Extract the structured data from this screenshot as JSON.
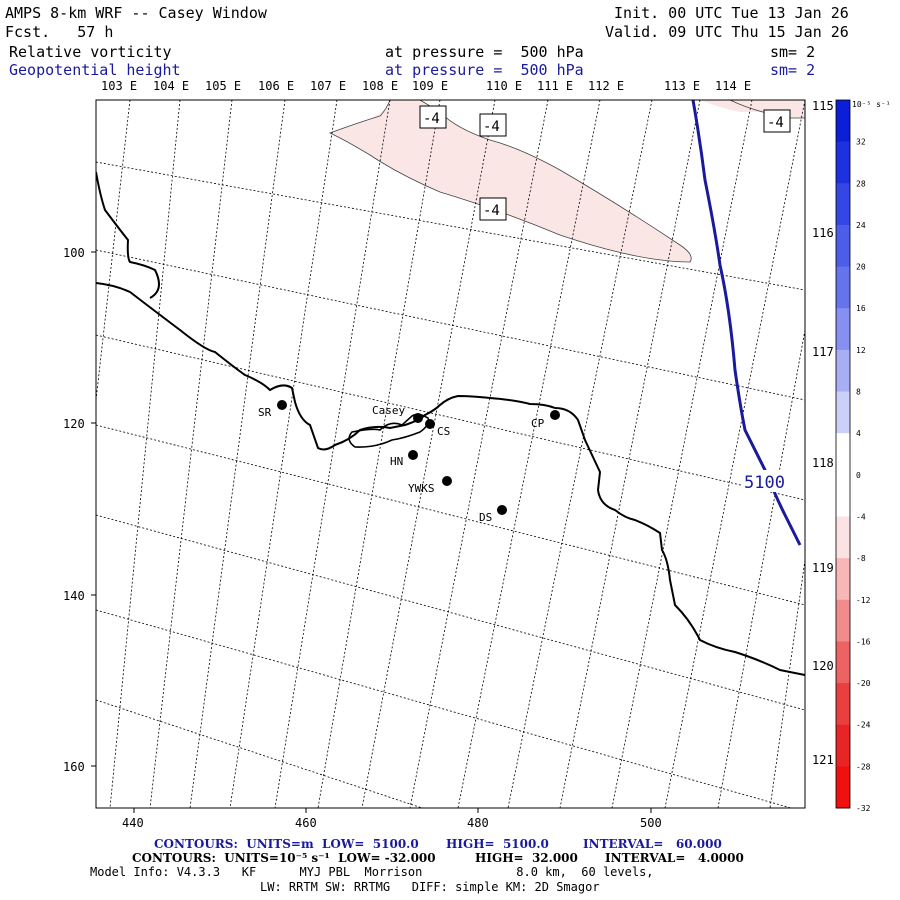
{
  "header": {
    "title": "AMPS 8-km WRF -- Casey Window",
    "forecast": "Fcst.   57 h",
    "init": "Init. 00 UTC Tue 13 Jan 26",
    "valid": "Valid. 09 UTC Thu 15 Jan 26",
    "field1": {
      "name": "Relative vorticity",
      "level": "at pressure =  500 hPa",
      "smooth": "sm= 2"
    },
    "field2": {
      "name": "Geopotential height",
      "level": "at pressure =  500 hPa",
      "smooth": "sm= 2"
    }
  },
  "map": {
    "lon_labels_top": [
      "103 E",
      "104 E",
      "105 E",
      "106 E",
      "107 E",
      "108 E",
      "109 E",
      "110 E",
      "111 E",
      "112 E",
      "113 E",
      "114 E"
    ],
    "lat_labels_right": [
      "115 E",
      "116 E",
      "117 E",
      "118 E",
      "119 E",
      "120 E",
      "121 E"
    ],
    "x_ticks": [
      "440",
      "460",
      "480",
      "500"
    ],
    "y_ticks": [
      "100",
      "120",
      "140",
      "160"
    ],
    "contour_labels": {
      "vort_neg": "-4",
      "height": "5100"
    },
    "stations": [
      {
        "id": "SR",
        "label": "SR"
      },
      {
        "id": "Casey",
        "label": "Casey"
      },
      {
        "id": "CS",
        "label": "CS"
      },
      {
        "id": "HN",
        "label": "HN"
      },
      {
        "id": "YWKS",
        "label": "YWKS"
      },
      {
        "id": "DS",
        "label": "DS"
      },
      {
        "id": "CP",
        "label": "CP"
      }
    ]
  },
  "colorbar": {
    "units": "10⁻⁵ s⁻¹",
    "labels": [
      "32",
      "28",
      "24",
      "20",
      "16",
      "12",
      "8",
      "4",
      "0",
      "-4",
      "-8",
      "-12",
      "-16",
      "-20",
      "-24",
      "-28",
      "-32"
    ],
    "colors": [
      "#0b1ed8",
      "#1d31e0",
      "#3446e4",
      "#4c5de8",
      "#6674ec",
      "#8590f0",
      "#a7aef4",
      "#cbd0f8",
      "#ffffff",
      "#ffffff",
      "#fce3e3",
      "#f7b7b7",
      "#f28c8c",
      "#ed6262",
      "#ea3f3f",
      "#e92424",
      "#f01010"
    ]
  },
  "footer": {
    "line1_a": "CONTOURS:  UNITS=m  LOW=  5100.0",
    "line1_b": "HIGH=  5100.0",
    "line1_c": "INTERVAL=   60.000",
    "line2_a": "CONTOURS:  UNITS=10⁻⁵ s⁻¹  LOW= -32.000",
    "line2_b": "HIGH=  32.000",
    "line2_c": "INTERVAL=   4.0000",
    "line3": "Model Info: V4.3.3   KF      MYJ PBL  Morrison             8.0 km,  60 levels,",
    "line4": "LW: RRTM SW: RRTMG   DIFF: simple KM: 2D Smagor"
  },
  "colors": {
    "vort_fill": "#fbe6e6",
    "height_line": "#1a1a9c",
    "text_blue": "#1a1a9c"
  }
}
